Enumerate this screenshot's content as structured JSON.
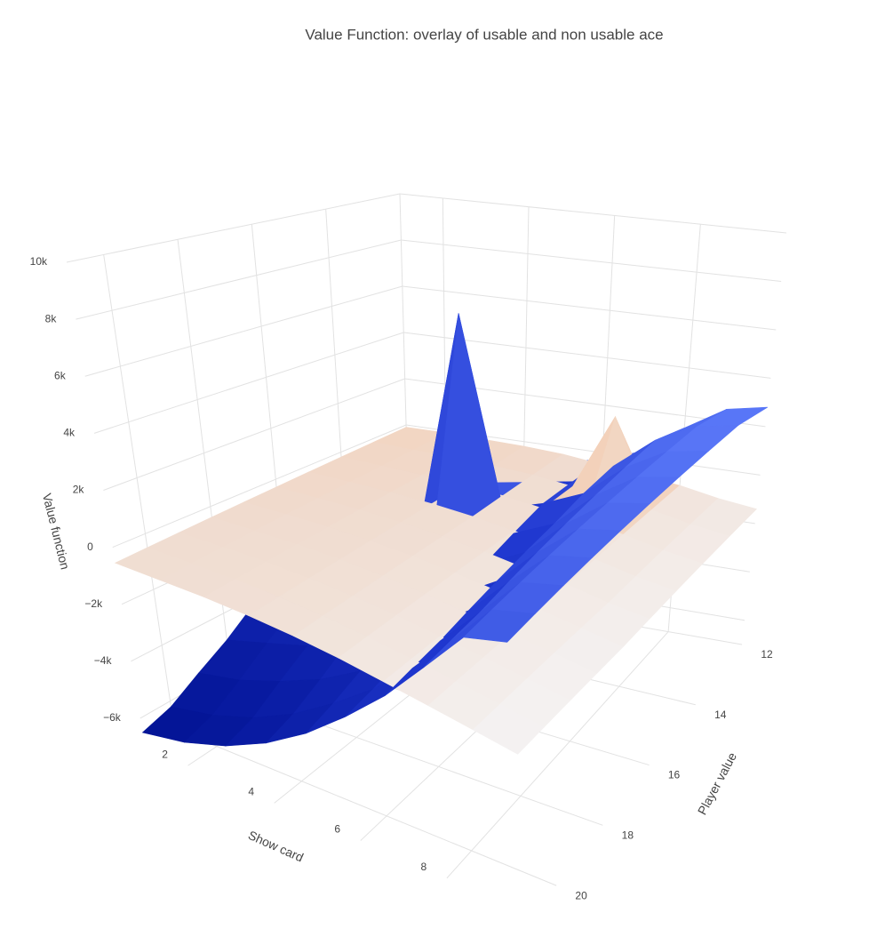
{
  "chart_data": {
    "type": "surface3d",
    "title": "Value Function: overlay of usable and non usable ace",
    "xaxis_title": "Show card",
    "yaxis_title": "Player value",
    "zaxis_title": "Value function",
    "x": [
      1,
      2,
      3,
      4,
      5,
      6,
      7,
      8,
      9,
      10
    ],
    "y": [
      12,
      13,
      14,
      15,
      16,
      17,
      18,
      19,
      20,
      21
    ],
    "xlim": [
      1,
      10
    ],
    "ylim": [
      12,
      21
    ],
    "zlim": [
      -7000,
      10000
    ],
    "xticks": [
      2,
      4,
      6,
      8
    ],
    "yticks": [
      12,
      14,
      16,
      18,
      20
    ],
    "zticks": [
      {
        "value": -6000,
        "label": "−6k"
      },
      {
        "value": -4000,
        "label": "−4k"
      },
      {
        "value": -2000,
        "label": "−2k"
      },
      0,
      {
        "value": 2000,
        "label": "2k"
      },
      {
        "value": 4000,
        "label": "4k"
      },
      {
        "value": 6000,
        "label": "6k"
      },
      {
        "value": 8000,
        "label": "8k"
      },
      {
        "value": 10000,
        "label": "10k"
      }
    ],
    "grid": true,
    "surfaces": [
      {
        "cmin": -7000,
        "cmax": 7000,
        "colorscale": [
          [
            0,
            "#00108f"
          ],
          [
            0.45,
            "#2038d0"
          ],
          [
            0.7,
            "#5a78f8"
          ],
          [
            1,
            "#a8a8b8"
          ]
        ],
        "z": [
          [
            -1500,
            -1200,
            -1000,
            -800,
            -600,
            -300,
            300,
            1500,
            2500,
            2800
          ],
          [
            -1800,
            -1500,
            -1300,
            -1000,
            -700,
            -400,
            500,
            1800,
            2600,
            2900
          ],
          [
            -2200,
            -2000,
            -1700,
            6500,
            -1000,
            -500,
            200,
            1500,
            2400,
            2700
          ],
          [
            -2800,
            -2500,
            -2200,
            -1800,
            -1400,
            -900,
            -200,
            1200,
            2200,
            2500
          ],
          [
            -3500,
            -3200,
            -2800,
            -2400,
            -1900,
            -1300,
            -500,
            900,
            2000,
            2300
          ],
          [
            -4200,
            -3900,
            -3500,
            -3000,
            -2400,
            -1700,
            -800,
            600,
            1800,
            2100
          ],
          [
            -5000,
            -4600,
            -4200,
            -3600,
            -2900,
            -2100,
            -1100,
            300,
            1600,
            1900
          ],
          [
            -5600,
            -5300,
            -4800,
            -4200,
            -3400,
            -2500,
            -1400,
            0,
            1400,
            1700
          ],
          [
            -6200,
            -5900,
            -5400,
            -4700,
            -3800,
            -2800,
            -1600,
            -200,
            1200,
            1500
          ],
          [
            -6500,
            -6200,
            -5700,
            -5000,
            -4100,
            -3000,
            -1800,
            -400,
            1000,
            1300
          ]
        ]
      },
      {
        "cmin": -2000,
        "cmax": 2500,
        "colorscale": [
          [
            0,
            "#f4f2f2"
          ],
          [
            0.35,
            "#f0dccf"
          ],
          [
            0.6,
            "#f6c4a0"
          ],
          [
            1,
            "#a0141c"
          ]
        ],
        "z": [
          [
            -100,
            -100,
            -150,
            -200,
            -300,
            -500,
            -700,
            -900,
            -1200,
            -1400
          ],
          [
            -150,
            -200,
            -250,
            -300,
            -400,
            -600,
            2500,
            -1000,
            -1300,
            -1500
          ],
          [
            -200,
            -250,
            -300,
            -400,
            -500,
            -700,
            -900,
            -1100,
            -1400,
            -1600
          ],
          [
            -250,
            -300,
            -350,
            -450,
            -600,
            -800,
            -1000,
            -1200,
            -1500,
            -1700
          ],
          [
            -300,
            -350,
            -400,
            -500,
            -650,
            -850,
            -1100,
            -1300,
            -1600,
            -1800
          ],
          [
            -350,
            -400,
            -450,
            -550,
            -700,
            -900,
            -1150,
            -1400,
            -1650,
            -1900
          ],
          [
            -400,
            -450,
            -500,
            -600,
            -750,
            -950,
            -1200,
            -1450,
            -1700,
            -1950
          ],
          [
            -450,
            -500,
            -550,
            -650,
            -800,
            -1000,
            -1250,
            -1500,
            -1750,
            -2000
          ],
          [
            -500,
            -550,
            -600,
            -700,
            -850,
            -1050,
            -1300,
            -1550,
            -1800,
            -2050
          ],
          [
            -550,
            -600,
            -650,
            -750,
            -900,
            -1100,
            -1350,
            -1600,
            -1850,
            -2100
          ]
        ]
      }
    ]
  }
}
